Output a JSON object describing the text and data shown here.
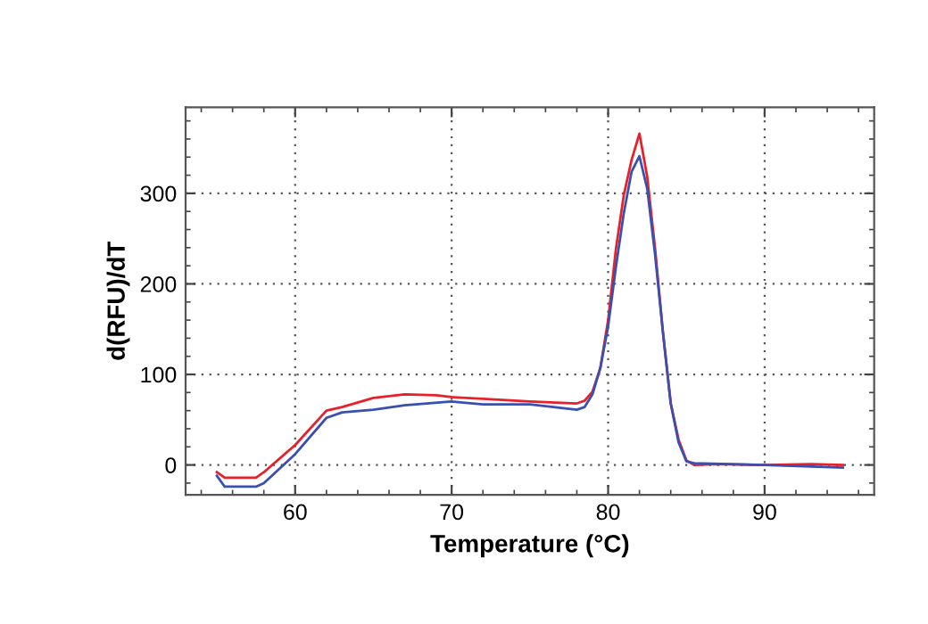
{
  "chart_data": {
    "type": "line",
    "xlabel": "Temperature (°C)",
    "ylabel": "d(RFU)/dT",
    "xlim": [
      53,
      97
    ],
    "ylim": [
      -33,
      395
    ],
    "xticks": [
      60,
      70,
      80,
      90
    ],
    "yticks": [
      0,
      100,
      200,
      300
    ],
    "grid": true,
    "marker": "none",
    "line_style": "solid",
    "series": [
      {
        "color": "#e8202a",
        "x": [
          55,
          55.5,
          57.5,
          58,
          60,
          62,
          63,
          65,
          67,
          69,
          70,
          72,
          75,
          78,
          78.5,
          79,
          79.5,
          80,
          80.5,
          81,
          81.5,
          82,
          82.5,
          83,
          83.5,
          84,
          84.5,
          85,
          85.5,
          87,
          90,
          93,
          95
        ],
        "values": [
          -8,
          -14,
          -14,
          -8,
          22,
          60,
          64,
          74,
          78,
          77,
          75,
          73,
          70,
          68,
          71,
          81,
          107,
          160,
          239,
          298,
          337,
          366,
          318,
          239,
          147,
          68,
          28,
          5,
          0,
          1,
          0,
          1,
          0
        ]
      },
      {
        "color": "#3a50b0",
        "x": [
          55,
          55.5,
          57.5,
          58,
          60,
          62,
          63,
          65,
          67,
          70,
          72,
          75,
          77,
          78,
          78.5,
          79,
          79.5,
          80,
          80.5,
          81,
          81.5,
          82,
          82.5,
          83,
          83.5,
          84,
          84.5,
          85,
          85.5,
          90,
          95
        ],
        "values": [
          -12,
          -24,
          -24,
          -20,
          12,
          52,
          58,
          61,
          66,
          70,
          67,
          67,
          63,
          61,
          64,
          78,
          107,
          153,
          219,
          278,
          324,
          341,
          305,
          232,
          147,
          68,
          25,
          4,
          2,
          0,
          -3
        ]
      }
    ]
  }
}
